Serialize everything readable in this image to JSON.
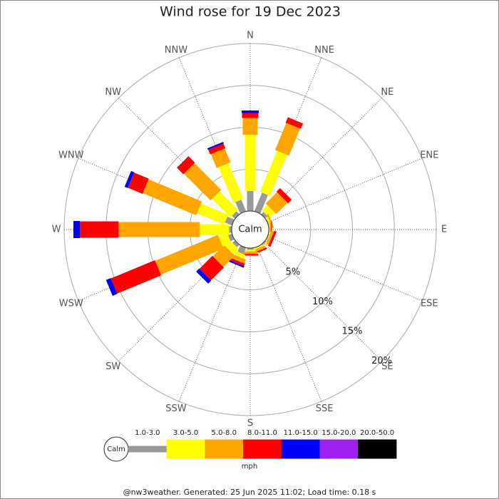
{
  "chart_data": {
    "type": "windrose",
    "title": "Wind rose for 19 Dec 2023",
    "directions": [
      "N",
      "NNE",
      "NE",
      "ENE",
      "E",
      "ESE",
      "SE",
      "SSE",
      "S",
      "SSW",
      "SW",
      "WSW",
      "W",
      "WNW",
      "NW",
      "NNW"
    ],
    "calm_label": "Calm",
    "units": "mph",
    "ylim": [
      0,
      20
    ],
    "yticks": [
      {
        "value": 5,
        "label": "5%"
      },
      {
        "value": 10,
        "label": "10%"
      },
      {
        "value": 15,
        "label": "15%"
      },
      {
        "value": 20,
        "label": "20%"
      }
    ],
    "series": [
      {
        "name": "1.0-3.0",
        "color": "#999999",
        "values": [
          2.4,
          2.4,
          0.4,
          0.1,
          0,
          0.1,
          0.1,
          0,
          0.2,
          0.8,
          0.4,
          0.5,
          0.3,
          0.9,
          0.5,
          1.5
        ]
      },
      {
        "name": "3.0-5.0",
        "color": "#ffff00",
        "values": [
          6.7,
          5.3,
          0.9,
          0.2,
          0.1,
          0.1,
          0,
          0.2,
          0.2,
          0.5,
          0.9,
          1.1,
          3.5,
          3.5,
          3.1,
          4.6
        ]
      },
      {
        "name": "5.0-8.0",
        "color": "#ffa500",
        "values": [
          2.0,
          3.5,
          1.9,
          0.2,
          0.2,
          0.3,
          0.1,
          0.3,
          0.3,
          0.5,
          1.9,
          8.1,
          9.7,
          6.9,
          4.5,
          1.8
        ]
      },
      {
        "name": "8.0-11.0",
        "color": "#ff0000",
        "values": [
          0.6,
          0.7,
          0.6,
          0,
          0.1,
          0.3,
          0,
          0.2,
          0.2,
          0.3,
          2.2,
          5.7,
          4.6,
          1.9,
          1.1,
          0.6
        ]
      },
      {
        "name": "11.0-15.0",
        "color": "#0000ff",
        "values": [
          0.3,
          0,
          0,
          0,
          0,
          0,
          0,
          0,
          0,
          0.2,
          0.5,
          0.6,
          0.8,
          0.4,
          0,
          0.2
        ]
      },
      {
        "name": "15.0-20.0",
        "color": "#a020f0",
        "values": [
          0,
          0,
          0,
          0,
          0,
          0,
          0,
          0,
          0,
          0,
          0,
          0,
          0,
          0,
          0,
          0
        ]
      },
      {
        "name": "20.0-50.0",
        "color": "#000000",
        "values": [
          0,
          0,
          0,
          0,
          0,
          0,
          0,
          0,
          0,
          0,
          0,
          0,
          0,
          0,
          0,
          0
        ]
      }
    ],
    "footer": "@nw3weather. Generated: 25 Jun 2025 11:02; Load time: 0.18 s"
  }
}
